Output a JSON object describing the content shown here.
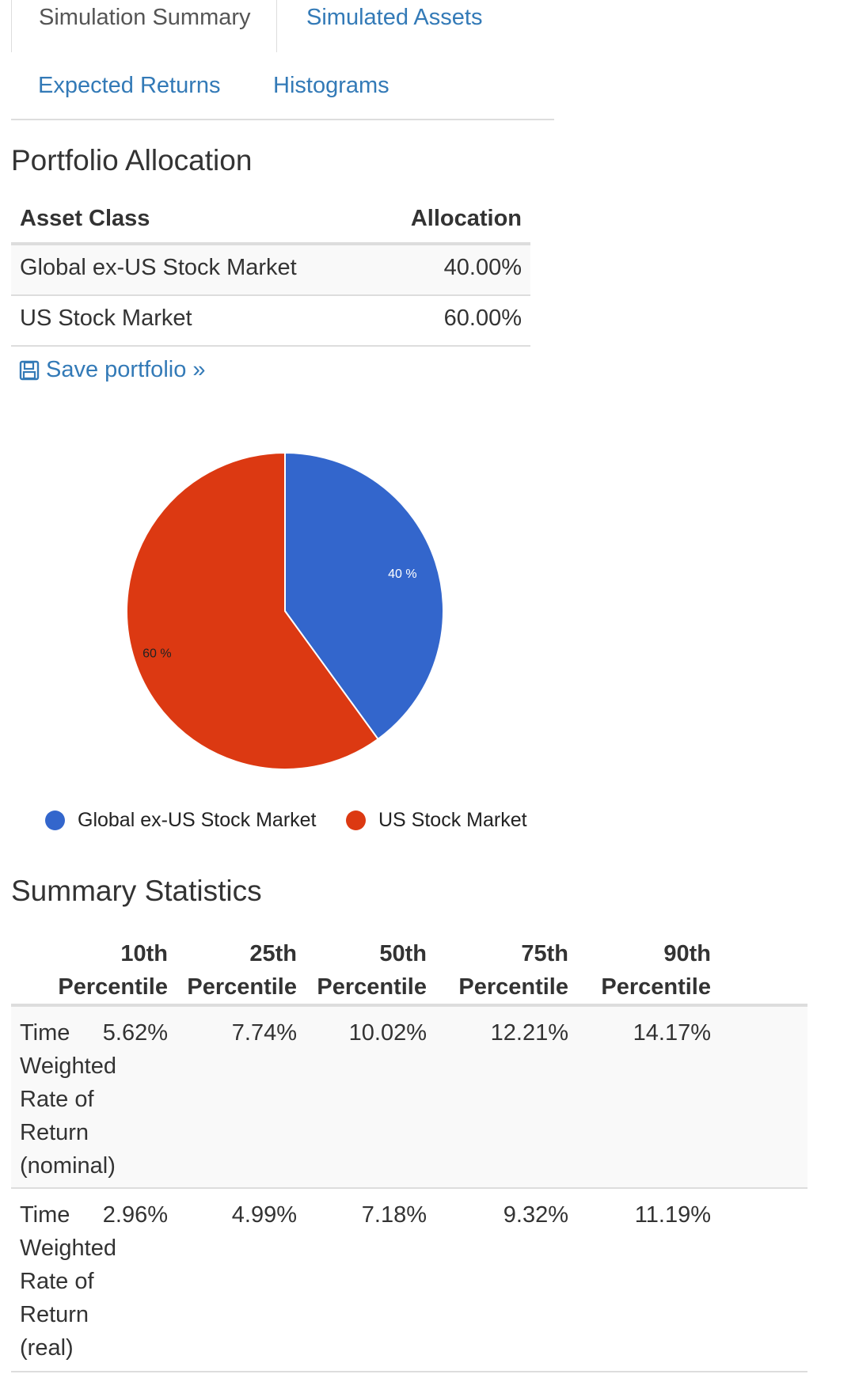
{
  "tabs": {
    "simulation_summary": "Simulation Summary",
    "simulated_assets": "Simulated Assets",
    "expected_returns": "Expected Returns",
    "histograms": "Histograms"
  },
  "allocation": {
    "title": "Portfolio Allocation",
    "header_asset": "Asset Class",
    "header_alloc": "Allocation",
    "rows": [
      {
        "asset": "Global ex-US Stock Market",
        "allocation": "40.00%"
      },
      {
        "asset": "US Stock Market",
        "allocation": "60.00%"
      }
    ],
    "save_label": "Save portfolio »",
    "save_icon": "floppy-disk-icon"
  },
  "chart_data": {
    "type": "pie",
    "categories": [
      "Global ex-US Stock Market",
      "US Stock Market"
    ],
    "values": [
      40,
      60
    ],
    "slice_labels": [
      "40 %",
      "60 %"
    ],
    "colors": [
      "#3366cc",
      "#dc3912"
    ],
    "legend_position": "bottom"
  },
  "stats": {
    "title": "Summary Statistics",
    "columns": [
      {
        "line1": "10th",
        "line2": "Percentile"
      },
      {
        "line1": "25th",
        "line2": "Percentile"
      },
      {
        "line1": "50th",
        "line2": "Percentile"
      },
      {
        "line1": "75th",
        "line2": "Percentile"
      },
      {
        "line1": "90th",
        "line2": "Percentile"
      }
    ],
    "rows": [
      {
        "label": [
          "Time",
          "Weighted",
          "Rate of",
          "Return",
          "(nominal)"
        ],
        "values": [
          "5.62%",
          "7.74%",
          "10.02%",
          "12.21%",
          "14.17%"
        ]
      },
      {
        "label": [
          "Time",
          "Weighted",
          "Rate of",
          "Return",
          "(real)"
        ],
        "values": [
          "2.96%",
          "4.99%",
          "7.18%",
          "9.32%",
          "11.19%"
        ]
      }
    ]
  }
}
